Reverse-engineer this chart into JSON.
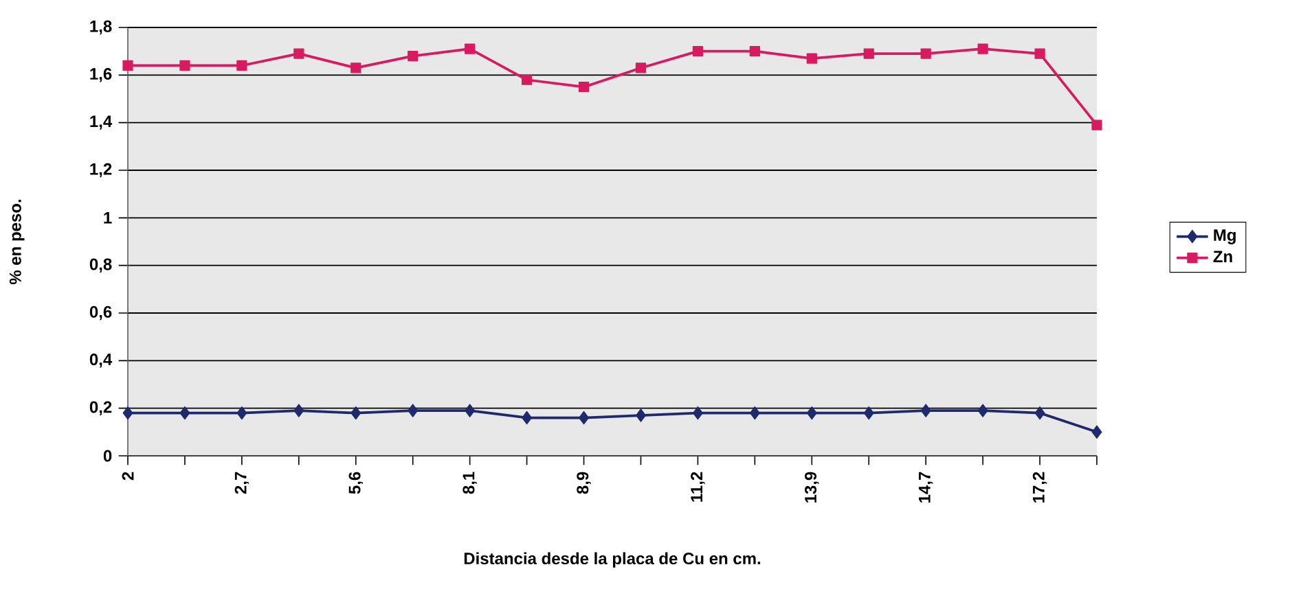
{
  "chart_data": {
    "type": "line",
    "xlabel": "Distancia desde la placa de Cu en cm.",
    "ylabel": "% en peso.",
    "categories": [
      "2",
      null,
      "2,7",
      null,
      "5,6",
      null,
      "8,1",
      null,
      "8,9",
      null,
      "11,2",
      null,
      "13,9",
      null,
      "14,7",
      null,
      "17,2",
      null
    ],
    "series": [
      {
        "name": "Mg",
        "color": "#1f2a6e",
        "marker": "diamond",
        "values": [
          0.18,
          0.18,
          0.18,
          0.19,
          0.18,
          0.19,
          0.19,
          0.16,
          0.16,
          0.17,
          0.18,
          0.18,
          0.18,
          0.18,
          0.19,
          0.19,
          0.18,
          0.1
        ]
      },
      {
        "name": "Zn",
        "color": "#d81b60",
        "marker": "square",
        "values": [
          1.64,
          1.64,
          1.64,
          1.69,
          1.63,
          1.68,
          1.71,
          1.58,
          1.55,
          1.63,
          1.7,
          1.7,
          1.67,
          1.69,
          1.69,
          1.71,
          1.69,
          1.39
        ]
      }
    ],
    "ylim": [
      0,
      1.8
    ],
    "yticks": [
      0,
      {
        "value": 0.2,
        "label": "0,2"
      },
      {
        "value": 0.4,
        "label": "0,4"
      },
      {
        "value": 0.6,
        "label": "0,6"
      },
      {
        "value": 0.8,
        "label": "0,8"
      },
      1,
      {
        "value": 1.2,
        "label": "1,2"
      },
      {
        "value": 1.4,
        "label": "1,4"
      },
      {
        "value": 1.6,
        "label": "1,6"
      },
      {
        "value": 1.8,
        "label": "1,8"
      }
    ],
    "grid": "y",
    "legend": "right",
    "line_style": "solid"
  }
}
